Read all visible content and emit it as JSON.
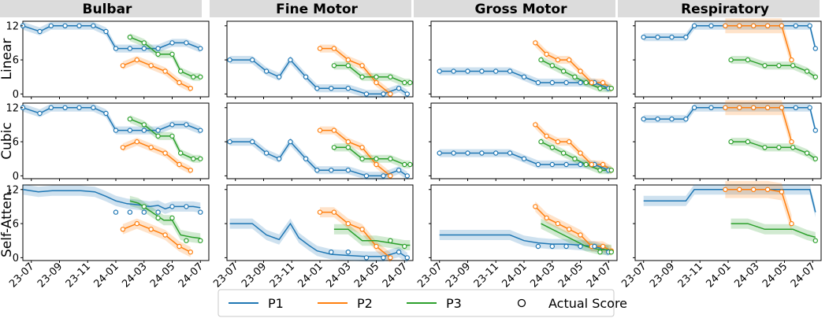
{
  "chart_data": {
    "type": "line",
    "columns": [
      "Bulbar",
      "Fine Motor",
      "Gross Motor",
      "Respiratory"
    ],
    "rows": [
      "Linear",
      "Cubic",
      "Self-Atten."
    ],
    "yticks": [
      0,
      6,
      12
    ],
    "ylim": [
      -0.5,
      12.8
    ],
    "xlim": [
      -0.6,
      12.6
    ],
    "x_ticks": [
      {
        "x": 0,
        "label": "23-07"
      },
      {
        "x": 2,
        "label": "23-09"
      },
      {
        "x": 4,
        "label": "23-11"
      },
      {
        "x": 6,
        "label": "24-01"
      },
      {
        "x": 8,
        "label": "24-03"
      },
      {
        "x": 10,
        "label": "24-05"
      },
      {
        "x": 12,
        "label": "24-07"
      }
    ],
    "legend": [
      {
        "name": "P1",
        "color": "#1f77b4",
        "kind": "line"
      },
      {
        "name": "P2",
        "color": "#ff7f0e",
        "kind": "line"
      },
      {
        "name": "P3",
        "color": "#2ca02c",
        "kind": "line"
      },
      {
        "name": "Actual Score",
        "color": "#000000",
        "kind": "marker"
      }
    ],
    "colors": {
      "P1": "#1f77b4",
      "P2": "#ff7f0e",
      "P3": "#2ca02c"
    },
    "series_actual": {
      "Bulbar": {
        "P1": [
          [
            -0.6,
            12
          ],
          [
            0.6,
            11
          ],
          [
            1.4,
            12
          ],
          [
            2.4,
            12
          ],
          [
            3.4,
            12
          ],
          [
            4.4,
            12
          ],
          [
            5.3,
            11
          ],
          [
            6,
            8
          ],
          [
            7,
            8
          ],
          [
            8,
            8
          ],
          [
            9,
            8
          ],
          [
            10,
            9
          ],
          [
            11,
            9
          ],
          [
            12,
            8
          ]
        ],
        "P2": [
          [
            6.5,
            5
          ],
          [
            7.5,
            6
          ],
          [
            8.5,
            5
          ],
          [
            9.5,
            4
          ],
          [
            10.5,
            2
          ],
          [
            11.3,
            1
          ]
        ],
        "P3": [
          [
            7,
            10
          ],
          [
            8,
            9
          ],
          [
            9,
            7
          ],
          [
            10,
            7
          ],
          [
            10.6,
            4
          ],
          [
            11.5,
            3
          ],
          [
            12,
            3
          ]
        ]
      },
      "Fine Motor": {
        "P1": [
          [
            -0.4,
            6
          ],
          [
            1.2,
            6
          ],
          [
            2.2,
            4
          ],
          [
            3.1,
            3
          ],
          [
            3.9,
            6
          ],
          [
            5,
            3
          ],
          [
            5.8,
            1
          ],
          [
            6.8,
            1
          ],
          [
            8,
            1
          ],
          [
            9.3,
            0
          ],
          [
            10.5,
            0
          ],
          [
            11.6,
            1
          ],
          [
            12.2,
            0
          ]
        ],
        "P2": [
          [
            6,
            8
          ],
          [
            7,
            8
          ],
          [
            8,
            6
          ],
          [
            9,
            5
          ],
          [
            10,
            2
          ],
          [
            11,
            0
          ]
        ],
        "P3": [
          [
            7,
            5
          ],
          [
            8,
            5
          ],
          [
            9,
            3
          ],
          [
            10,
            3
          ],
          [
            11,
            3
          ],
          [
            12,
            2
          ],
          [
            12.4,
            2
          ]
        ]
      },
      "Gross Motor": {
        "P1": [
          [
            0,
            4
          ],
          [
            1,
            4
          ],
          [
            2,
            4
          ],
          [
            3,
            4
          ],
          [
            4,
            4
          ],
          [
            5,
            4
          ],
          [
            6,
            3
          ],
          [
            7,
            2
          ],
          [
            8,
            2
          ],
          [
            9,
            2
          ],
          [
            10,
            2
          ],
          [
            11,
            2
          ],
          [
            12,
            1
          ]
        ],
        "P2": [
          [
            6.8,
            9
          ],
          [
            7.6,
            7
          ],
          [
            8.4,
            6
          ],
          [
            9.2,
            6
          ],
          [
            10,
            4
          ],
          [
            10.8,
            2
          ],
          [
            11.6,
            2
          ],
          [
            12.2,
            1
          ]
        ],
        "P3": [
          [
            7.2,
            6
          ],
          [
            8,
            5
          ],
          [
            8.8,
            4
          ],
          [
            9.6,
            3
          ],
          [
            10.4,
            2
          ],
          [
            11.4,
            1
          ],
          [
            12.2,
            1
          ]
        ]
      },
      "Respiratory": {
        "P1": [
          [
            0,
            10
          ],
          [
            1,
            10
          ],
          [
            2,
            10
          ],
          [
            3,
            10
          ],
          [
            3.6,
            12
          ],
          [
            4.8,
            12
          ],
          [
            5.8,
            12
          ],
          [
            6.8,
            12
          ],
          [
            7.8,
            12
          ],
          [
            8.8,
            12
          ],
          [
            9.8,
            12
          ],
          [
            10.8,
            12
          ],
          [
            11.8,
            12
          ],
          [
            12.2,
            8
          ]
        ],
        "P2": [
          [
            5.8,
            12
          ],
          [
            6.8,
            12
          ],
          [
            7.8,
            12
          ],
          [
            8.8,
            12
          ],
          [
            9.8,
            12
          ],
          [
            10.5,
            6
          ]
        ],
        "P3": [
          [
            6.2,
            6
          ],
          [
            7.4,
            6
          ],
          [
            8.6,
            5
          ],
          [
            9.6,
            5
          ],
          [
            10.6,
            5
          ],
          [
            11.6,
            4
          ],
          [
            12.2,
            3
          ]
        ]
      }
    },
    "series_self_atten": {
      "Bulbar": {
        "P1": [
          [
            -0.6,
            12
          ],
          [
            0.5,
            11.6
          ],
          [
            1.5,
            11.8
          ],
          [
            2.5,
            11.8
          ],
          [
            3.5,
            11.8
          ],
          [
            4.5,
            11.6
          ],
          [
            5.3,
            10.8
          ],
          [
            6,
            10
          ],
          [
            6.8,
            9.5
          ],
          [
            7.6,
            9.3
          ],
          [
            8.4,
            9
          ],
          [
            9,
            9.2
          ],
          [
            9.5,
            8.6
          ],
          [
            10,
            9
          ],
          [
            10.5,
            9
          ],
          [
            11,
            9
          ],
          [
            11.5,
            9
          ],
          [
            12,
            8.8
          ]
        ],
        "P2": [
          [
            6.5,
            5
          ],
          [
            7.5,
            6
          ],
          [
            8.5,
            5
          ],
          [
            9.5,
            4
          ],
          [
            10.5,
            2
          ],
          [
            11.3,
            1
          ]
        ],
        "P3": [
          [
            7,
            10
          ],
          [
            7.6,
            9.6
          ],
          [
            8.2,
            8.6
          ],
          [
            8.8,
            7.6
          ],
          [
            9.4,
            6.6
          ],
          [
            10,
            6.6
          ],
          [
            10.6,
            4
          ],
          [
            11.4,
            3.6
          ],
          [
            12,
            3.4
          ]
        ]
      },
      "Fine Motor": {
        "P1": [
          [
            -0.4,
            6
          ],
          [
            1.2,
            6
          ],
          [
            2.2,
            4
          ],
          [
            3.1,
            3.2
          ],
          [
            3.9,
            6
          ],
          [
            4.5,
            3.5
          ],
          [
            5.2,
            2.2
          ],
          [
            5.8,
            1.2
          ],
          [
            6.8,
            0.6
          ],
          [
            8,
            0.4
          ],
          [
            9.3,
            0.2
          ],
          [
            10.5,
            0.2
          ],
          [
            11.6,
            1
          ],
          [
            12.2,
            0
          ]
        ],
        "P2": [
          [
            6,
            8
          ],
          [
            7,
            8
          ],
          [
            8,
            6
          ],
          [
            9,
            5
          ],
          [
            10,
            2
          ],
          [
            11,
            0
          ]
        ],
        "P3": [
          [
            7,
            5
          ],
          [
            8,
            5
          ],
          [
            9,
            3
          ],
          [
            10,
            3
          ],
          [
            11,
            2.6
          ],
          [
            12,
            2.2
          ],
          [
            12.4,
            2.2
          ]
        ]
      },
      "Gross Motor": {
        "P1": [
          [
            0,
            4
          ],
          [
            1,
            4
          ],
          [
            2,
            4
          ],
          [
            3,
            4
          ],
          [
            4,
            4
          ],
          [
            5,
            4
          ],
          [
            6,
            3
          ],
          [
            7,
            2.6
          ],
          [
            8,
            2.4
          ],
          [
            9,
            2.4
          ],
          [
            10,
            2.2
          ],
          [
            11,
            2
          ],
          [
            12,
            1.2
          ]
        ],
        "P2": [
          [
            6.8,
            9
          ],
          [
            7.6,
            7
          ],
          [
            8.4,
            6
          ],
          [
            9.2,
            5
          ],
          [
            10,
            4
          ],
          [
            10.8,
            2
          ],
          [
            11.6,
            2
          ],
          [
            12.2,
            1.2
          ]
        ],
        "P3": [
          [
            7.2,
            6
          ],
          [
            8,
            5
          ],
          [
            8.8,
            4
          ],
          [
            9.6,
            3
          ],
          [
            10.4,
            2
          ],
          [
            11.4,
            1.4
          ],
          [
            12.2,
            1.4
          ]
        ]
      },
      "Respiratory": {
        "P1": [
          [
            0,
            10
          ],
          [
            1,
            10
          ],
          [
            2,
            10
          ],
          [
            3,
            10
          ],
          [
            3.6,
            12
          ],
          [
            4.8,
            12
          ],
          [
            5.8,
            12
          ],
          [
            6.8,
            12
          ],
          [
            7.8,
            12
          ],
          [
            8.8,
            12
          ],
          [
            9.8,
            12
          ],
          [
            10.8,
            12
          ],
          [
            11.8,
            12
          ],
          [
            12.2,
            8
          ]
        ],
        "P2": [
          [
            5.8,
            12
          ],
          [
            6.8,
            12
          ],
          [
            7.8,
            12
          ],
          [
            8.8,
            12
          ],
          [
            9.8,
            11.6
          ],
          [
            10.5,
            6
          ]
        ],
        "P3": [
          [
            6.2,
            6
          ],
          [
            7.4,
            6
          ],
          [
            8.6,
            5
          ],
          [
            9.6,
            5
          ],
          [
            10.6,
            5
          ],
          [
            11.6,
            4
          ],
          [
            12.2,
            3.6
          ]
        ]
      }
    },
    "self_atten_scatter": {
      "Bulbar": {
        "P1": [
          [
            6,
            8
          ],
          [
            7,
            8
          ],
          [
            8,
            8
          ],
          [
            9,
            8
          ],
          [
            10,
            9
          ],
          [
            11,
            9
          ],
          [
            12,
            8
          ]
        ],
        "P3": [
          [
            8,
            9
          ],
          [
            9,
            7
          ],
          [
            10,
            7
          ],
          [
            11,
            3
          ],
          [
            12,
            3
          ]
        ]
      },
      "Fine Motor": {
        "P1": [
          [
            6.8,
            1
          ],
          [
            8,
            1
          ],
          [
            9.3,
            0
          ],
          [
            10.5,
            0
          ],
          [
            11.6,
            1
          ],
          [
            12.2,
            0
          ]
        ],
        "P3": [
          [
            11,
            3
          ],
          [
            12,
            2
          ]
        ]
      },
      "Gross Motor": {
        "P1": [
          [
            7,
            2
          ],
          [
            8,
            2
          ],
          [
            9,
            2
          ],
          [
            10,
            2
          ],
          [
            11,
            2
          ],
          [
            12,
            1
          ]
        ],
        "P3": [
          [
            11.4,
            1
          ],
          [
            12.2,
            1
          ]
        ]
      },
      "Respiratory": {
        "P1": [],
        "P3": [
          [
            12.2,
            3
          ]
        ]
      }
    }
  }
}
